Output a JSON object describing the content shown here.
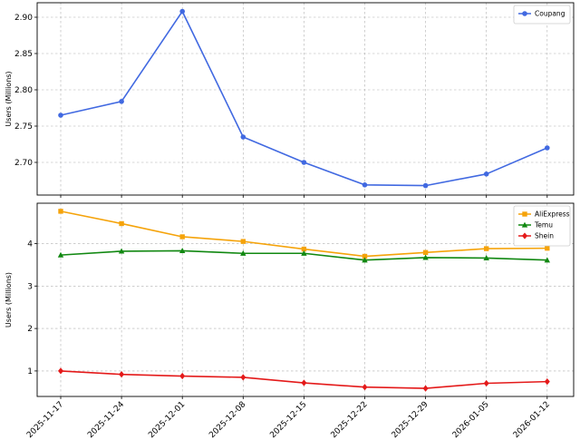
{
  "chart_data": [
    {
      "type": "line",
      "x": [
        "2025-11-17",
        "2025-11-24",
        "2025-12-01",
        "2025-12-08",
        "2025-12-15",
        "2025-12-22",
        "2025-12-29",
        "2026-01-05",
        "2026-01-12"
      ],
      "ylabel": "Users (Millions)",
      "xlabel": "",
      "ylim": [
        2.655,
        2.92
      ],
      "yticks": [
        "2.70",
        "2.75",
        "2.80",
        "2.85",
        "2.90"
      ],
      "grid": true,
      "legend_position": "top-right",
      "series": [
        {
          "name": "Coupang",
          "color": "#4169e1",
          "marker": "circle",
          "values": [
            2.765,
            2.784,
            2.908,
            2.735,
            2.7,
            2.669,
            2.668,
            2.684,
            2.72
          ]
        }
      ]
    },
    {
      "type": "line",
      "x": [
        "2025-11-17",
        "2025-11-24",
        "2025-12-01",
        "2025-12-08",
        "2025-12-15",
        "2025-12-22",
        "2025-12-29",
        "2026-01-05",
        "2026-01-12"
      ],
      "ylabel": "Users (Millions)",
      "xlabel": "",
      "ylim": [
        0.4,
        4.95
      ],
      "yticks": [
        "1",
        "2",
        "3",
        "4"
      ],
      "grid": true,
      "legend_position": "top-right",
      "series": [
        {
          "name": "AliExpress",
          "color": "#f5a30a",
          "marker": "square",
          "values": [
            4.76,
            4.47,
            4.16,
            4.05,
            3.87,
            3.7,
            3.79,
            3.88,
            3.89
          ]
        },
        {
          "name": "Temu",
          "color": "#118811",
          "marker": "triangle",
          "values": [
            3.73,
            3.82,
            3.83,
            3.77,
            3.77,
            3.61,
            3.67,
            3.66,
            3.61
          ]
        },
        {
          "name": "Shein",
          "color": "#e41a1a",
          "marker": "diamond",
          "values": [
            1.0,
            0.92,
            0.88,
            0.85,
            0.72,
            0.62,
            0.59,
            0.71,
            0.75
          ]
        }
      ]
    }
  ]
}
